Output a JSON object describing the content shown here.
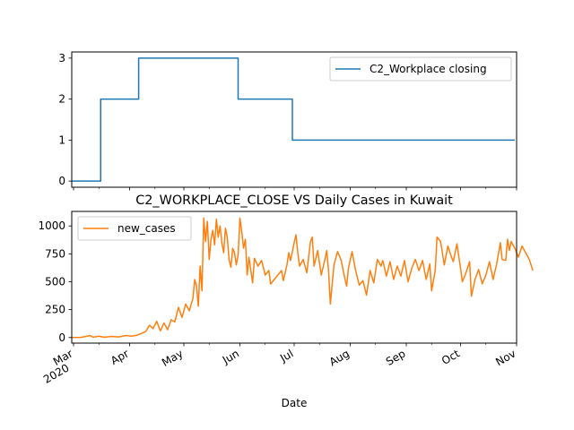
{
  "chart_data": [
    {
      "type": "line",
      "title": "",
      "xlabel": "",
      "ylabel": "",
      "ylim": [
        -0.15,
        3.15
      ],
      "yticks": [
        0,
        1,
        2,
        3
      ],
      "legend_placement": "upper right",
      "grid": false,
      "series": [
        {
          "name": "C2_Workplace closing",
          "color": "#1f77b4",
          "points": [
            [
              "2020-02-29",
              0
            ],
            [
              "2020-03-15",
              0
            ],
            [
              "2020-03-16",
              2
            ],
            [
              "2020-04-05",
              2
            ],
            [
              "2020-04-06",
              3
            ],
            [
              "2020-05-30",
              3
            ],
            [
              "2020-05-31",
              2
            ],
            [
              "2020-06-29",
              2
            ],
            [
              "2020-06-30",
              1
            ],
            [
              "2020-10-31",
              1
            ]
          ]
        }
      ]
    },
    {
      "type": "line",
      "title": "C2_WORKPLACE_CLOSE VS Daily Cases in Kuwait",
      "xlabel": "Date",
      "ylabel": "",
      "ylim": [
        -50,
        1130
      ],
      "yticks": [
        0,
        250,
        500,
        750,
        1000
      ],
      "legend_placement": "upper left",
      "grid": false,
      "x_tick_labels": [
        {
          "date": "2020-03-01",
          "label": "Mar",
          "sublabel": "2020"
        },
        {
          "date": "2020-04-01",
          "label": "Apr",
          "sublabel": ""
        },
        {
          "date": "2020-05-01",
          "label": "May",
          "sublabel": ""
        },
        {
          "date": "2020-06-01",
          "label": "Jun",
          "sublabel": ""
        },
        {
          "date": "2020-07-01",
          "label": "Jul",
          "sublabel": ""
        },
        {
          "date": "2020-08-01",
          "label": "Aug",
          "sublabel": ""
        },
        {
          "date": "2020-09-01",
          "label": "Sep",
          "sublabel": ""
        },
        {
          "date": "2020-10-01",
          "label": "Oct",
          "sublabel": ""
        },
        {
          "date": "2020-11-01",
          "label": "Nov",
          "sublabel": ""
        }
      ],
      "series": [
        {
          "name": "new_cases",
          "color": "#ff7f0e",
          "points": [
            [
              "2020-02-29",
              0
            ],
            [
              "2020-03-05",
              1
            ],
            [
              "2020-03-08",
              10
            ],
            [
              "2020-03-10",
              18
            ],
            [
              "2020-03-12",
              3
            ],
            [
              "2020-03-15",
              12
            ],
            [
              "2020-03-18",
              2
            ],
            [
              "2020-03-22",
              10
            ],
            [
              "2020-03-26",
              5
            ],
            [
              "2020-03-30",
              18
            ],
            [
              "2020-04-02",
              12
            ],
            [
              "2020-04-05",
              20
            ],
            [
              "2020-04-08",
              40
            ],
            [
              "2020-04-10",
              55
            ],
            [
              "2020-04-12",
              110
            ],
            [
              "2020-04-14",
              80
            ],
            [
              "2020-04-16",
              145
            ],
            [
              "2020-04-18",
              60
            ],
            [
              "2020-04-20",
              130
            ],
            [
              "2020-04-22",
              70
            ],
            [
              "2020-04-24",
              160
            ],
            [
              "2020-04-26",
              140
            ],
            [
              "2020-04-28",
              270
            ],
            [
              "2020-04-30",
              180
            ],
            [
              "2020-05-02",
              300
            ],
            [
              "2020-05-04",
              240
            ],
            [
              "2020-05-06",
              350
            ],
            [
              "2020-05-07",
              520
            ],
            [
              "2020-05-08",
              460
            ],
            [
              "2020-05-09",
              280
            ],
            [
              "2020-05-10",
              640
            ],
            [
              "2020-05-11",
              420
            ],
            [
              "2020-05-12",
              1070
            ],
            [
              "2020-05-13",
              860
            ],
            [
              "2020-05-14",
              1040
            ],
            [
              "2020-05-15",
              700
            ],
            [
              "2020-05-16",
              880
            ],
            [
              "2020-05-17",
              960
            ],
            [
              "2020-05-18",
              830
            ],
            [
              "2020-05-19",
              1060
            ],
            [
              "2020-05-20",
              900
            ],
            [
              "2020-05-21",
              1000
            ],
            [
              "2020-05-22",
              850
            ],
            [
              "2020-05-23",
              760
            ],
            [
              "2020-05-24",
              980
            ],
            [
              "2020-05-25",
              900
            ],
            [
              "2020-05-26",
              700
            ],
            [
              "2020-05-27",
              630
            ],
            [
              "2020-05-28",
              800
            ],
            [
              "2020-05-29",
              760
            ],
            [
              "2020-05-30",
              650
            ],
            [
              "2020-05-31",
              740
            ],
            [
              "2020-06-01",
              1070
            ],
            [
              "2020-06-02",
              950
            ],
            [
              "2020-06-03",
              800
            ],
            [
              "2020-06-04",
              880
            ],
            [
              "2020-06-05",
              560
            ],
            [
              "2020-06-06",
              720
            ],
            [
              "2020-06-08",
              490
            ],
            [
              "2020-06-09",
              710
            ],
            [
              "2020-06-11",
              640
            ],
            [
              "2020-06-13",
              690
            ],
            [
              "2020-06-15",
              560
            ],
            [
              "2020-06-17",
              600
            ],
            [
              "2020-06-18",
              480
            ],
            [
              "2020-06-20",
              520
            ],
            [
              "2020-06-22",
              560
            ],
            [
              "2020-06-24",
              600
            ],
            [
              "2020-06-25",
              510
            ],
            [
              "2020-06-27",
              650
            ],
            [
              "2020-06-28",
              760
            ],
            [
              "2020-06-29",
              690
            ],
            [
              "2020-07-01",
              850
            ],
            [
              "2020-07-02",
              920
            ],
            [
              "2020-07-03",
              760
            ],
            [
              "2020-07-04",
              640
            ],
            [
              "2020-07-06",
              700
            ],
            [
              "2020-07-08",
              580
            ],
            [
              "2020-07-10",
              860
            ],
            [
              "2020-07-11",
              900
            ],
            [
              "2020-07-12",
              640
            ],
            [
              "2020-07-14",
              780
            ],
            [
              "2020-07-16",
              560
            ],
            [
              "2020-07-18",
              700
            ],
            [
              "2020-07-19",
              780
            ],
            [
              "2020-07-20",
              600
            ],
            [
              "2020-07-21",
              300
            ],
            [
              "2020-07-23",
              650
            ],
            [
              "2020-07-25",
              770
            ],
            [
              "2020-07-27",
              690
            ],
            [
              "2020-07-29",
              530
            ],
            [
              "2020-07-30",
              460
            ],
            [
              "2020-07-31",
              620
            ],
            [
              "2020-08-02",
              770
            ],
            [
              "2020-08-04",
              600
            ],
            [
              "2020-08-06",
              470
            ],
            [
              "2020-08-08",
              510
            ],
            [
              "2020-08-10",
              380
            ],
            [
              "2020-08-12",
              600
            ],
            [
              "2020-08-14",
              490
            ],
            [
              "2020-08-16",
              700
            ],
            [
              "2020-08-18",
              640
            ],
            [
              "2020-08-19",
              690
            ],
            [
              "2020-08-21",
              550
            ],
            [
              "2020-08-23",
              680
            ],
            [
              "2020-08-25",
              520
            ],
            [
              "2020-08-27",
              640
            ],
            [
              "2020-08-29",
              550
            ],
            [
              "2020-08-31",
              690
            ],
            [
              "2020-09-02",
              500
            ],
            [
              "2020-09-04",
              620
            ],
            [
              "2020-09-06",
              700
            ],
            [
              "2020-09-08",
              600
            ],
            [
              "2020-09-10",
              690
            ],
            [
              "2020-09-12",
              520
            ],
            [
              "2020-09-14",
              660
            ],
            [
              "2020-09-15",
              420
            ],
            [
              "2020-09-17",
              600
            ],
            [
              "2020-09-18",
              900
            ],
            [
              "2020-09-20",
              860
            ],
            [
              "2020-09-22",
              650
            ],
            [
              "2020-09-24",
              820
            ],
            [
              "2020-09-26",
              720
            ],
            [
              "2020-09-27",
              680
            ],
            [
              "2020-09-29",
              840
            ],
            [
              "2020-10-01",
              620
            ],
            [
              "2020-10-02",
              500
            ],
            [
              "2020-10-04",
              580
            ],
            [
              "2020-10-06",
              680
            ],
            [
              "2020-10-07",
              370
            ],
            [
              "2020-10-09",
              520
            ],
            [
              "2020-10-11",
              610
            ],
            [
              "2020-10-13",
              480
            ],
            [
              "2020-10-15",
              560
            ],
            [
              "2020-10-17",
              680
            ],
            [
              "2020-10-19",
              520
            ],
            [
              "2020-10-21",
              660
            ],
            [
              "2020-10-23",
              850
            ],
            [
              "2020-10-24",
              700
            ],
            [
              "2020-10-26",
              690
            ],
            [
              "2020-10-27",
              880
            ],
            [
              "2020-10-28",
              780
            ],
            [
              "2020-10-29",
              860
            ],
            [
              "2020-10-31",
              800
            ],
            [
              "2020-11-02",
              720
            ],
            [
              "2020-11-04",
              820
            ],
            [
              "2020-11-06",
              760
            ],
            [
              "2020-11-08",
              700
            ],
            [
              "2020-11-10",
              600
            ]
          ]
        }
      ]
    }
  ]
}
